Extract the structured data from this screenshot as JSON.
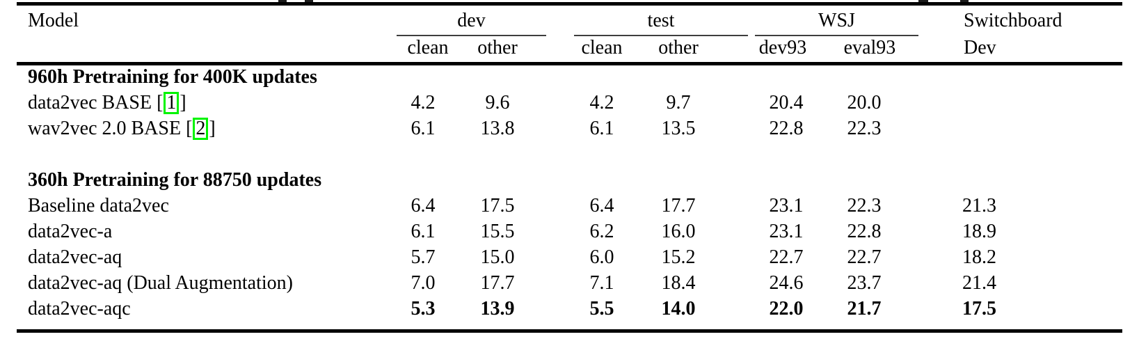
{
  "page": {
    "background": "#ffffff",
    "text_color": "#000000",
    "rule_color": "#000000",
    "citation_box_color": "#00f400"
  },
  "header": {
    "model_label": "Model",
    "groups": [
      {
        "label": "dev",
        "sub": [
          "clean",
          "other"
        ]
      },
      {
        "label": "test",
        "sub": [
          "clean",
          "other"
        ]
      },
      {
        "label": "WSJ",
        "sub": [
          "dev93",
          "eval93"
        ]
      },
      {
        "label": "Switchboard",
        "sub": [
          "Dev"
        ]
      }
    ]
  },
  "sections": [
    {
      "title": "960h Pretraining for 400K updates",
      "gap_after": true,
      "rows": [
        {
          "model": "data2vec BASE",
          "citation": "1",
          "bold_values": false,
          "values": [
            "4.2",
            "9.6",
            "4.2",
            "9.7",
            "20.4",
            "20.0",
            ""
          ]
        },
        {
          "model": "wav2vec 2.0 BASE",
          "citation": "2",
          "bold_values": false,
          "values": [
            "6.1",
            "13.8",
            "6.1",
            "13.5",
            "22.8",
            "22.3",
            ""
          ]
        }
      ]
    },
    {
      "title": "360h Pretraining for 88750 updates",
      "gap_after": false,
      "rows": [
        {
          "model": "Baseline data2vec",
          "bold_values": false,
          "values": [
            "6.4",
            "17.5",
            "6.4",
            "17.7",
            "23.1",
            "22.3",
            "21.3"
          ]
        },
        {
          "model": "data2vec-a",
          "bold_values": false,
          "values": [
            "6.1",
            "15.5",
            "6.2",
            "16.0",
            "23.1",
            "22.8",
            "18.9"
          ]
        },
        {
          "model": "data2vec-aq",
          "bold_values": false,
          "values": [
            "5.7",
            "15.0",
            "6.0",
            "15.2",
            "22.7",
            "22.7",
            "18.2"
          ]
        },
        {
          "model": "data2vec-aq (Dual Augmentation)",
          "bold_values": false,
          "values": [
            "7.0",
            "17.7",
            "7.1",
            "18.4",
            "24.6",
            "23.7",
            "21.4"
          ]
        },
        {
          "model": "data2vec-aqc",
          "bold_values": true,
          "values": [
            "5.3",
            "13.9",
            "5.5",
            "14.0",
            "22.0",
            "21.7",
            "17.5"
          ]
        }
      ]
    }
  ]
}
